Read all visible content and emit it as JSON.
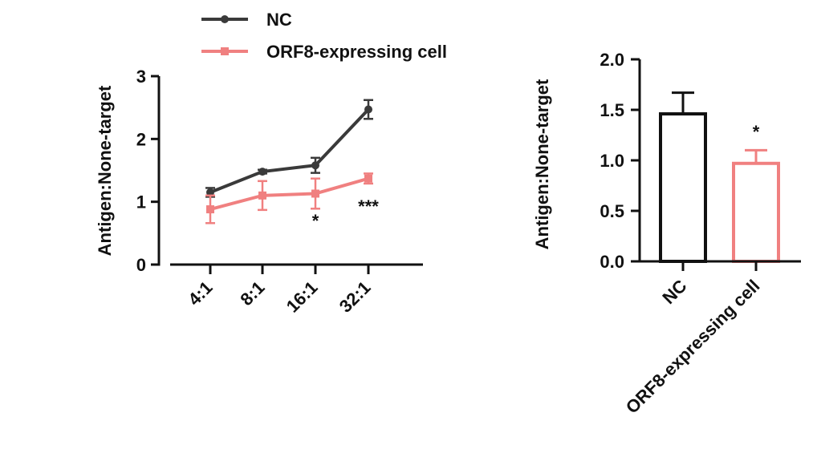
{
  "chart_data": [
    {
      "type": "line",
      "title": "",
      "xlabel": "",
      "ylabel": "Antigen:None-target",
      "categories": [
        "4:1",
        "8:1",
        "16:1",
        "32:1"
      ],
      "ylim": [
        0,
        3
      ],
      "yticks": [
        "0",
        "1",
        "2",
        "3"
      ],
      "grid": false,
      "legend_position": "top-left",
      "series": [
        {
          "name": "NC",
          "color": "#3a3a3a",
          "marker": "circle",
          "values": [
            1.15,
            1.48,
            1.58,
            2.47
          ],
          "errors": [
            0.07,
            0.03,
            0.12,
            0.15
          ]
        },
        {
          "name": "ORF8-expressing cell",
          "color": "#f08080",
          "marker": "square",
          "values": [
            0.88,
            1.1,
            1.13,
            1.37
          ],
          "errors": [
            0.22,
            0.23,
            0.24,
            0.08
          ]
        }
      ],
      "annotations": [
        {
          "category": "16:1",
          "text": "*"
        },
        {
          "category": "32:1",
          "text": "***"
        }
      ]
    },
    {
      "type": "bar",
      "title": "",
      "xlabel": "",
      "ylabel": "Antigen:None-target",
      "categories": [
        "NC",
        "ORF8-expressing cell"
      ],
      "ylim": [
        0,
        2
      ],
      "yticks": [
        "0.0",
        "0.5",
        "1.0",
        "1.5",
        "2.0"
      ],
      "grid": false,
      "series": [
        {
          "values": [
            1.46,
            0.97
          ],
          "errors": [
            0.21,
            0.13
          ],
          "colors": [
            "#111111",
            "#f08080"
          ]
        }
      ],
      "annotations": [
        {
          "category": "ORF8-expressing cell",
          "text": "*"
        }
      ]
    }
  ]
}
